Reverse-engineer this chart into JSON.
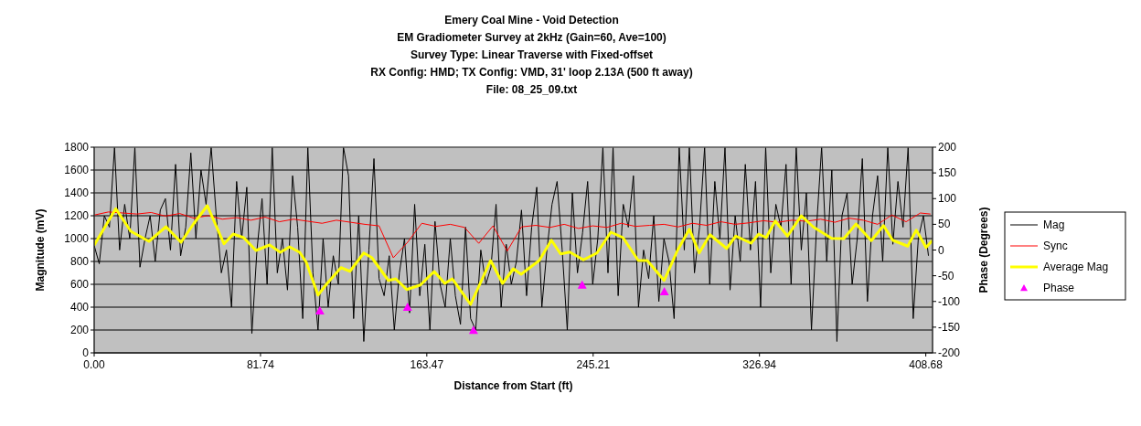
{
  "chart_data": {
    "type": "line",
    "title": "Emery Coal Mine - Void Detection",
    "subtitle": "EM Gradiometer Survey at 2kHz (Gain=60, Ave=100)\nSurvey Type: Linear Traverse with Fixed-offset\nRX Config: HMD; TX Config: VMD, 31' loop 2.13A (500 ft away)\nFile: 08_25_09.txt",
    "xlabel": "Distance from Start (ft)",
    "ylabel": "Magnitude (mV)",
    "y2label": "Phase (Degrees)",
    "xlim": [
      0,
      412
    ],
    "xticks": [
      {
        "value": 0,
        "label": "0.00"
      },
      81.74,
      163.47,
      245.21,
      326.94,
      408.68
    ],
    "ylim": [
      0,
      1800
    ],
    "yticks": [
      0,
      200,
      400,
      600,
      800,
      1000,
      1200,
      1400,
      1600,
      1800
    ],
    "y2lim": [
      -200,
      200
    ],
    "y2ticks": [
      -200,
      -150,
      -100,
      -50,
      0,
      50,
      100,
      150,
      200
    ],
    "grid": "y",
    "legend": "right",
    "series": [
      {
        "name": "Mag",
        "color": "#000000",
        "x": [
          0,
          2.5,
          5,
          7.5,
          10,
          12.5,
          15,
          17.5,
          20,
          22.5,
          25,
          27.5,
          30,
          32.5,
          35,
          37.5,
          40,
          42.5,
          45,
          47.5,
          50,
          52.5,
          55,
          57.5,
          60,
          62.5,
          65,
          67.5,
          70,
          72.5,
          75,
          77.5,
          80,
          82.5,
          85,
          87.5,
          90,
          92.5,
          95,
          97.5,
          100,
          102.5,
          105,
          107.5,
          110,
          112.5,
          115,
          117.5,
          120,
          122.5,
          125,
          127.5,
          130,
          132.5,
          135,
          137.5,
          140,
          142.5,
          145,
          147.5,
          150,
          152.5,
          155,
          157.5,
          160,
          162.5,
          165,
          167.5,
          170,
          172.5,
          175,
          177.5,
          180,
          182.5,
          185,
          187.5,
          190,
          192.5,
          195,
          197.5,
          200,
          202.5,
          205,
          207.5,
          210,
          212.5,
          215,
          217.5,
          220,
          222.5,
          225,
          227.5,
          230,
          232.5,
          235,
          237.5,
          240,
          242.5,
          245,
          247.5,
          250,
          252.5,
          255,
          257.5,
          260,
          262.5,
          265,
          267.5,
          270,
          272.5,
          275,
          277.5,
          280,
          282.5,
          285,
          287.5,
          290,
          292.5,
          295,
          297.5,
          300,
          302.5,
          305,
          307.5,
          310,
          312.5,
          315,
          317.5,
          320,
          322.5,
          325,
          327.5,
          330,
          332.5,
          335,
          337.5,
          340,
          342.5,
          345,
          347.5,
          350,
          352.5,
          355,
          357.5,
          360,
          362.5,
          365,
          367.5,
          370,
          372.5,
          375,
          377.5,
          380,
          382.5,
          385,
          387.5,
          390,
          392.5,
          395,
          397.5,
          400,
          402.5,
          405,
          407.5,
          410
        ],
        "values": [
          940,
          780,
          1200,
          1100,
          1800,
          900,
          1300,
          1000,
          1800,
          750,
          1000,
          1200,
          800,
          1250,
          1350,
          900,
          1650,
          850,
          1100,
          1750,
          1000,
          1600,
          1300,
          1800,
          1200,
          700,
          900,
          400,
          1500,
          1000,
          1450,
          170,
          900,
          1350,
          600,
          1800,
          700,
          1000,
          550,
          1550,
          1100,
          300,
          1800,
          700,
          200,
          1000,
          400,
          850,
          600,
          1800,
          1550,
          300,
          1200,
          100,
          900,
          1700,
          650,
          500,
          850,
          200,
          700,
          1000,
          350,
          1300,
          500,
          950,
          200,
          1150,
          600,
          400,
          1000,
          500,
          250,
          1100,
          300,
          200,
          900,
          600,
          750,
          1300,
          400,
          950,
          600,
          800,
          1250,
          500,
          1100,
          1450,
          400,
          900,
          1300,
          1500,
          900,
          200,
          1400,
          700,
          1050,
          1500,
          600,
          1000,
          1800,
          700,
          1800,
          500,
          1300,
          1100,
          1550,
          400,
          900,
          650,
          1200,
          450,
          1000,
          800,
          300,
          1800,
          900,
          1800,
          700,
          1100,
          1800,
          600,
          1500,
          1000,
          1800,
          550,
          1200,
          800,
          1650,
          900,
          1500,
          400,
          1800,
          700,
          1300,
          1100,
          1650,
          600,
          1800,
          900,
          1400,
          200,
          1100,
          1800,
          800,
          1600,
          100,
          1200,
          1400,
          600,
          1000,
          1700,
          450,
          1200,
          1550,
          800,
          1800,
          950,
          1500,
          1100,
          1800,
          300,
          1000,
          1200,
          850
        ]
      },
      {
        "name": "Sync",
        "color": "#ff0000",
        "axis": "y2",
        "x": [
          0,
          7,
          14,
          21,
          28,
          35,
          42,
          49,
          56,
          63,
          70,
          77,
          84,
          91,
          98,
          105,
          112,
          119,
          126,
          133,
          140,
          147,
          154,
          161,
          168,
          175,
          182,
          189,
          196,
          203,
          210,
          217,
          224,
          231,
          238,
          245,
          252,
          259,
          266,
          273,
          280,
          287,
          294,
          301,
          308,
          315,
          322,
          329,
          336,
          343,
          350,
          357,
          364,
          371,
          378,
          385,
          392,
          399,
          406,
          411
        ],
        "values": [
          68,
          74,
          72,
          70,
          73,
          66,
          71,
          62,
          67,
          60,
          63,
          58,
          64,
          55,
          60,
          56,
          52,
          58,
          54,
          50,
          47,
          -15,
          15,
          52,
          46,
          50,
          44,
          13,
          47,
          -2,
          45,
          48,
          44,
          50,
          42,
          47,
          44,
          52,
          46,
          48,
          50,
          45,
          52,
          48,
          55,
          50,
          53,
          57,
          54,
          58,
          56,
          60,
          54,
          62,
          58,
          50,
          68,
          55,
          72,
          70
        ]
      },
      {
        "name": "Average Mag",
        "color": "#ffff00",
        "x": [
          0,
          10.6,
          18,
          26.9,
          35.3,
          42.7,
          48.8,
          55.6,
          63.8,
          68.3,
          73.5,
          79.5,
          86.2,
          91.5,
          96,
          101,
          104.2,
          110,
          114.5,
          121.3,
          125.7,
          132.5,
          136.4,
          144.6,
          148.2,
          153.6,
          160.3,
          167.1,
          172.3,
          176,
          185,
          194.8,
          200.7,
          206,
          209.8,
          218.7,
          224.7,
          229.2,
          233.7,
          240.4,
          247.1,
          253.9,
          259.9,
          267.4,
          271.8,
          280.1,
          286.8,
          292.5,
          297.3,
          302.6,
          310.8,
          315.3,
          322.8,
          326.6,
          330.2,
          334.7,
          340.7,
          347.5,
          353.4,
          362.4,
          368.4,
          374.4,
          381.9,
          387.9,
          392.4,
          399.8,
          404,
          408.8,
          411.8
        ],
        "values": [
          942,
          1262,
          1064,
          976,
          1104,
          968,
          1128,
          1288,
          954,
          1040,
          1008,
          896,
          944,
          880,
          928,
          880,
          794,
          506,
          608,
          746,
          714,
          874,
          834,
          634,
          648,
          554,
          594,
          712,
          608,
          648,
          424,
          808,
          608,
          736,
          688,
          808,
          986,
          866,
          882,
          814,
          874,
          1056,
          1008,
          808,
          808,
          634,
          902,
          1082,
          874,
          1034,
          914,
          1022,
          960,
          1040,
          1008,
          1154,
          1022,
          1200,
          1102,
          1002,
          1000,
          1128,
          982,
          1114,
          986,
          934,
          1074,
          922,
          982
        ]
      },
      {
        "name": "Phase",
        "type": "scatter",
        "color": "#ff00ff",
        "axis": "y2",
        "marker": "triangle",
        "x": [
          110.9,
          154,
          186.4,
          239.8,
          280.2
        ],
        "values": [
          -118,
          -111,
          -156,
          -68,
          -81
        ]
      }
    ]
  }
}
